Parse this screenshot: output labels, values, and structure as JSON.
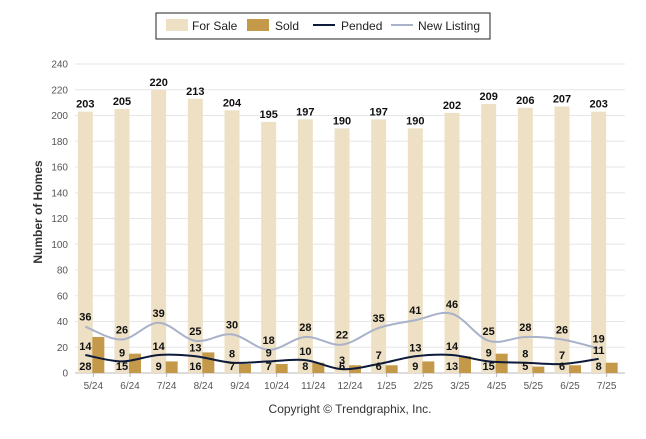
{
  "chart_data": {
    "type": "bar",
    "categories": [
      "5/24",
      "6/24",
      "7/24",
      "8/24",
      "9/24",
      "10/24",
      "11/24",
      "12/24",
      "1/25",
      "2/25",
      "3/25",
      "4/25",
      "5/25",
      "6/25",
      "7/25"
    ],
    "series": [
      {
        "name": "For Sale",
        "kind": "bar",
        "color": "#ede0c4",
        "values": [
          203,
          205,
          220,
          213,
          204,
          195,
          197,
          190,
          197,
          190,
          202,
          209,
          206,
          207,
          203
        ]
      },
      {
        "name": "Sold",
        "kind": "bar",
        "color": "#c49a4a",
        "values": [
          28,
          15,
          9,
          16,
          7,
          7,
          8,
          6,
          6,
          9,
          13,
          15,
          5,
          6,
          8
        ]
      },
      {
        "name": "Pended",
        "kind": "line",
        "color": "#0e1a3a",
        "values": [
          14,
          9,
          14,
          13,
          8,
          9,
          10,
          3,
          7,
          13,
          14,
          9,
          8,
          7,
          11
        ]
      },
      {
        "name": "New Listing",
        "kind": "line",
        "color": "#a9b2c9",
        "values": [
          36,
          26,
          39,
          25,
          30,
          18,
          28,
          22,
          35,
          41,
          46,
          25,
          28,
          26,
          19
        ]
      }
    ],
    "ylabel": "Number of Homes",
    "ylim": [
      0,
      240
    ],
    "yticks": [
      0,
      20,
      40,
      60,
      80,
      100,
      120,
      140,
      160,
      180,
      200,
      220,
      240
    ],
    "grid": true,
    "legend_placement": "top-center"
  },
  "copyright": "Copyright © Trendgraphix, Inc."
}
